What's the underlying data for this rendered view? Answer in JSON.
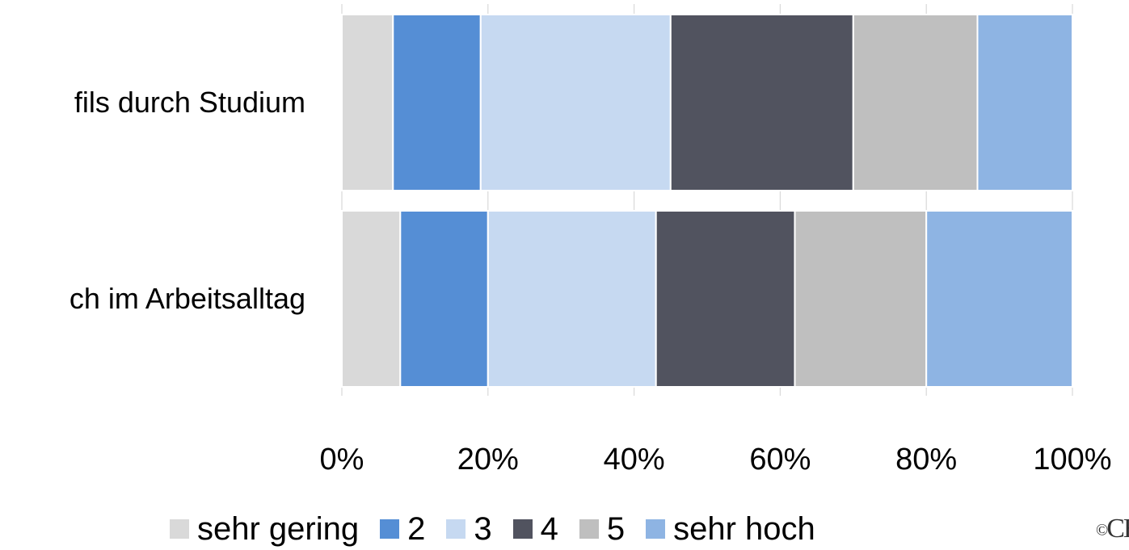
{
  "chart_data": {
    "type": "bar",
    "orientation": "horizontal",
    "stacked": "percent",
    "categories": [
      "fils durch Studium",
      "ch im Arbeitsalltag"
    ],
    "series": [
      {
        "name": "sehr gering",
        "color": "#d9d9d9",
        "values": [
          7,
          8
        ]
      },
      {
        "name": "2",
        "color": "#558ed5",
        "values": [
          12,
          12
        ]
      },
      {
        "name": "3",
        "color": "#c6d9f1",
        "values": [
          26,
          23
        ]
      },
      {
        "name": "4",
        "color": "#51535f",
        "values": [
          25,
          19
        ]
      },
      {
        "name": "5",
        "color": "#bfbfbf",
        "values": [
          17,
          18
        ]
      },
      {
        "name": "sehr hoch",
        "color": "#8eb4e3",
        "values": [
          13,
          20
        ]
      }
    ],
    "xticks": [
      "0%",
      "20%",
      "40%",
      "60%",
      "80%",
      "100%"
    ],
    "xlim": [
      0,
      100
    ],
    "legend_position": "bottom",
    "grid": true
  },
  "logo": {
    "copyright": "©",
    "text": "CHE"
  }
}
